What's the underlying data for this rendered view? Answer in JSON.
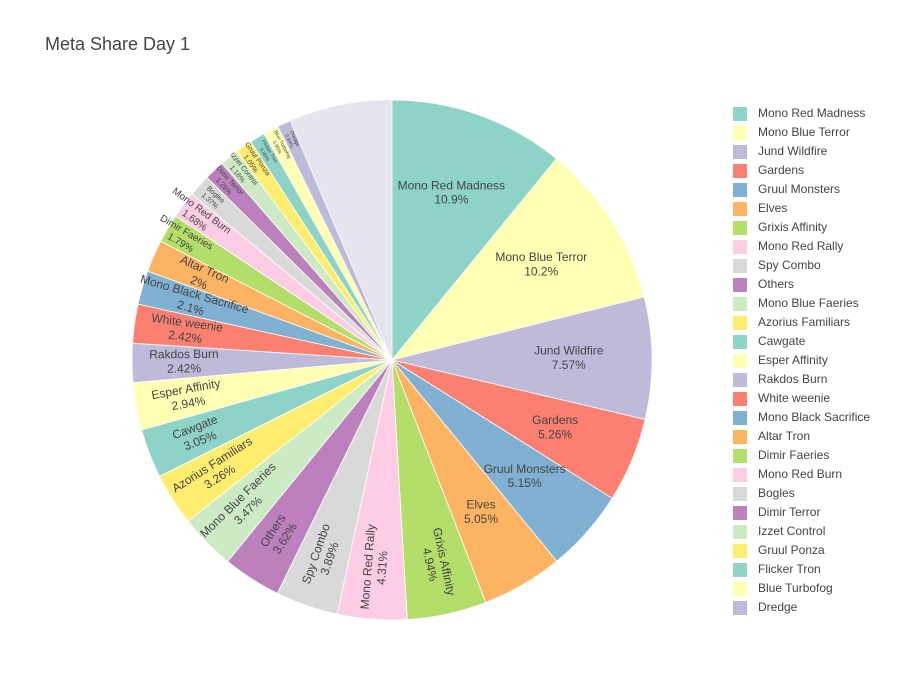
{
  "chart_data": {
    "type": "pie",
    "title": "Meta Share Day 1",
    "labels": [
      "Mono Red Madness",
      "Mono Blue Terror",
      "Jund Wildfire",
      "Gardens",
      "Gruul Monsters",
      "Elves",
      "Grixis Affinity",
      "Mono Red Rally",
      "Spy Combo",
      "Others",
      "Mono Blue Faeries",
      "Azorius Familiars",
      "Cawgate",
      "Esper Affinity",
      "Rakdos Burn",
      "White weenie",
      "Mono Black Sacrifice",
      "Altar Tron",
      "Dimir Faeries",
      "Mono Red Burn",
      "Bogles",
      "Dimir Terror",
      "Izzet Control",
      "Gruul Ponza",
      "Flicker Tron",
      "Blue Turbofog",
      "Dredge"
    ],
    "values": [
      10.9,
      10.2,
      7.57,
      5.26,
      5.15,
      5.05,
      4.94,
      4.31,
      3.89,
      3.62,
      3.47,
      3.26,
      3.05,
      2.94,
      2.42,
      2.42,
      2.1,
      2,
      1.79,
      1.68,
      1.37,
      1.26,
      1.16,
      1.05,
      0.95,
      0.95,
      0.84
    ],
    "value_labels": [
      "10.9%",
      "10.2%",
      "7.57%",
      "5.26%",
      "5.15%",
      "5.05%",
      "4.94%",
      "4.31%",
      "3.89%",
      "3.62%",
      "3.47%",
      "3.26%",
      "3.05%",
      "2.94%",
      "2.42%",
      "2.42%",
      "2.1%",
      "2%",
      "1.79%",
      "1.68%",
      "1.37%",
      "1.26%",
      "1.16%",
      "1.05%",
      "0.95%",
      "0.95%",
      "0.84%"
    ],
    "colors": [
      "#8dd3c7",
      "#ffffb3",
      "#bebada",
      "#fb8072",
      "#80b1d3",
      "#fdb462",
      "#b3de69",
      "#fccde5",
      "#d9d9d9",
      "#bc80bd",
      "#ccebc5",
      "#ffed6f",
      "#8dd3c7",
      "#ffffb3",
      "#bebada",
      "#fb8072",
      "#80b1d3",
      "#fdb462",
      "#b3de69",
      "#fccde5",
      "#d9d9d9",
      "#bc80bd",
      "#ccebc5",
      "#ffed6f",
      "#8dd3c7",
      "#ffffb3",
      "#bebada"
    ]
  }
}
